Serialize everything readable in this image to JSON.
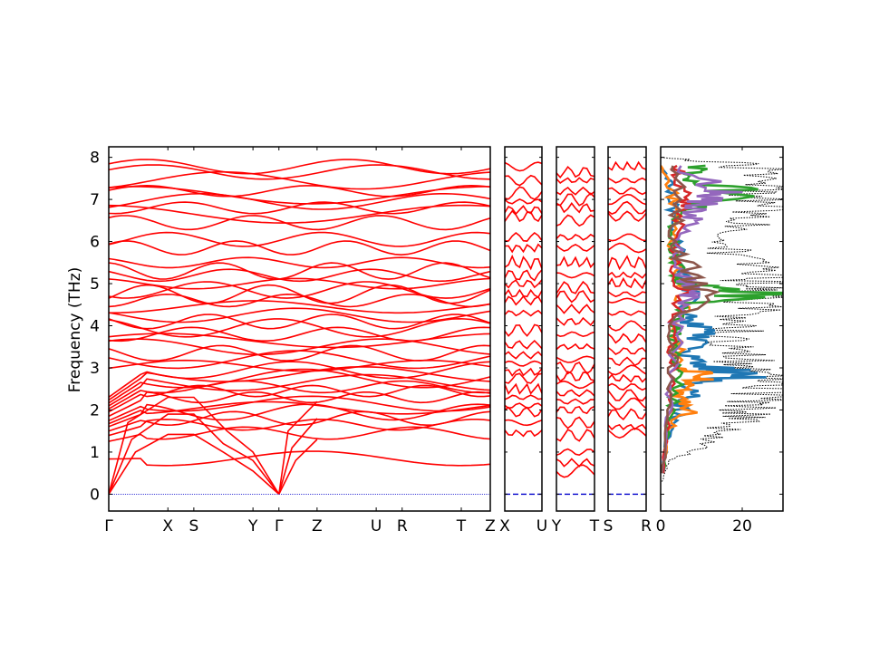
{
  "chart_data": [
    {
      "type": "line",
      "panel": "band-structure-main",
      "ylabel": "Frequency (THz)",
      "ylim": [
        -0.4,
        8.25
      ],
      "yticks": [
        0,
        1,
        2,
        3,
        4,
        5,
        6,
        7,
        8
      ],
      "ytick_labels": [
        "0",
        "1",
        "2",
        "3",
        "4",
        "5",
        "6",
        "7",
        "8"
      ],
      "xticks": [
        {
          "label": "Γ",
          "x": 0.0
        },
        {
          "label": "X",
          "x": 0.155
        },
        {
          "label": "S",
          "x": 0.223
        },
        {
          "label": "Y",
          "x": 0.378
        },
        {
          "label": "Γ",
          "x": 0.446
        },
        {
          "label": "Z",
          "x": 0.546
        },
        {
          "label": "U",
          "x": 0.701
        },
        {
          "label": "R",
          "x": 0.769
        },
        {
          "label": "T",
          "x": 0.924
        },
        {
          "label": "Z",
          "x": 1.0
        }
      ],
      "series_color": "#ff0000",
      "zero_line_color": "#0000cc",
      "acoustic_branches": [
        {
          "x": [
            0,
            0.07,
            0.155,
            0.223,
            0.3,
            0.378,
            0.446
          ],
          "y": [
            0,
            1.0,
            1.42,
            1.42,
            1.0,
            0.55,
            0
          ]
        },
        {
          "x": [
            0,
            0.06,
            0.155,
            0.223,
            0.3,
            0.378,
            0.446
          ],
          "y": [
            0,
            1.3,
            1.9,
            1.9,
            1.2,
            0.8,
            0
          ]
        },
        {
          "x": [
            0,
            0.05,
            0.155,
            0.223,
            0.31,
            0.378,
            0.446
          ],
          "y": [
            0,
            1.7,
            2.3,
            2.3,
            1.5,
            1.0,
            0
          ]
        },
        {
          "x": [
            0.446,
            0.49,
            0.546
          ],
          "y": [
            0,
            0.8,
            1.3
          ]
        },
        {
          "x": [
            0.446,
            0.48,
            0.546
          ],
          "y": [
            0,
            1.1,
            1.8
          ]
        },
        {
          "x": [
            0.446,
            0.47,
            0.546
          ],
          "y": [
            0,
            1.5,
            2.2
          ]
        }
      ],
      "optical_levels": [
        0.85,
        1.45,
        1.65,
        1.8,
        1.95,
        2.05,
        2.15,
        2.3,
        2.45,
        2.55,
        2.65,
        2.75,
        2.85,
        2.95,
        3.05,
        3.2,
        3.35,
        3.5,
        3.65,
        3.8,
        3.95,
        4.1,
        4.25,
        4.45,
        4.6,
        4.75,
        4.85,
        5.0,
        5.2,
        5.3,
        5.5,
        5.85,
        6.05,
        6.45,
        6.65,
        6.8,
        6.95,
        7.1,
        7.2,
        7.45,
        7.65,
        7.78
      ]
    },
    {
      "type": "line",
      "panel": "band-structure-XU",
      "xticks": [
        {
          "label": "X",
          "x": 0
        },
        {
          "label": "U",
          "x": 1
        }
      ],
      "levels": [
        1.45,
        1.7,
        1.95,
        2.1,
        2.3,
        2.5,
        2.75,
        2.9,
        3.1,
        3.3,
        3.55,
        3.9,
        4.3,
        4.6,
        4.75,
        5.0,
        5.2,
        5.5,
        5.85,
        6.1,
        6.6,
        6.75,
        6.95,
        7.15,
        7.45,
        7.78
      ]
    },
    {
      "type": "line",
      "panel": "band-structure-YT",
      "xticks": [
        {
          "label": "Y",
          "x": 0
        },
        {
          "label": "T",
          "x": 1
        }
      ],
      "levels": [
        0.55,
        0.75,
        1.0,
        1.4,
        1.7,
        2.0,
        2.2,
        2.4,
        2.6,
        2.8,
        3.0,
        3.2,
        3.5,
        3.8,
        4.1,
        4.4,
        4.7,
        4.9,
        5.2,
        5.5,
        5.85,
        6.1,
        6.5,
        6.8,
        7.0,
        7.2,
        7.45,
        7.65
      ]
    },
    {
      "type": "line",
      "panel": "band-structure-SR",
      "xticks": [
        {
          "label": "S",
          "x": 0
        },
        {
          "label": "R",
          "x": 1
        }
      ],
      "levels": [
        1.45,
        1.6,
        1.9,
        2.15,
        2.35,
        2.55,
        2.75,
        2.95,
        3.15,
        3.4,
        3.7,
        4.0,
        4.3,
        4.6,
        4.75,
        5.0,
        5.2,
        5.5,
        5.85,
        6.1,
        6.6,
        6.8,
        7.0,
        7.2,
        7.45,
        7.78
      ]
    },
    {
      "type": "line",
      "panel": "partial-dos",
      "xlim": [
        0,
        30
      ],
      "xticks": [
        0,
        20
      ],
      "xtick_labels": [
        "0",
        "20"
      ],
      "ylim": [
        -0.4,
        8.25
      ],
      "total": {
        "style": "dotted",
        "color": "#000000",
        "y": [
          0.3,
          0.8,
          1.2,
          1.5,
          1.8,
          2.0,
          2.2,
          2.5,
          2.7,
          3.0,
          3.2,
          3.5,
          3.8,
          4.0,
          4.3,
          4.6,
          4.8,
          5.0,
          5.2,
          5.5,
          5.8,
          6.1,
          6.4,
          6.7,
          7.0,
          7.2,
          7.5,
          7.8,
          8.0
        ],
        "x": [
          0.5,
          3,
          12,
          16,
          24,
          26,
          29,
          28,
          29,
          27,
          22,
          20,
          18,
          24,
          23,
          28,
          29,
          25,
          29,
          24,
          18,
          20,
          26,
          29,
          28,
          28,
          24,
          26,
          0
        ]
      },
      "series": [
        {
          "color": "#1f77b4",
          "y": [
            0.5,
            1.5,
            2.0,
            2.3,
            2.6,
            2.8,
            3.0,
            3.3,
            3.7,
            4.0,
            4.3,
            4.8,
            5.2,
            6.0,
            6.5,
            7.0,
            7.5,
            7.8
          ],
          "x": [
            0.5,
            2,
            5,
            7,
            8,
            20,
            14,
            6,
            10,
            9,
            6,
            8,
            5,
            4,
            3,
            3,
            2,
            0
          ]
        },
        {
          "color": "#ff7f0e",
          "y": [
            0.5,
            1.5,
            2.0,
            2.3,
            2.6,
            2.8,
            3.0,
            3.5,
            4.0,
            4.7,
            5.2,
            6.0,
            6.8,
            7.2,
            7.8
          ],
          "x": [
            0.5,
            2,
            7,
            4,
            6,
            12,
            5,
            4,
            4,
            6,
            4,
            3,
            3,
            3,
            0
          ]
        },
        {
          "color": "#2ca02c",
          "y": [
            0.5,
            2.0,
            2.8,
            3.5,
            4.0,
            4.5,
            4.78,
            5.0,
            5.5,
            6.0,
            6.7,
            7.2,
            7.5,
            7.8
          ],
          "x": [
            0.5,
            3,
            4,
            3,
            4,
            5,
            26,
            5,
            4,
            3,
            4,
            20,
            5,
            11
          ]
        },
        {
          "color": "#d62728",
          "y": [
            0.5,
            2.0,
            3.0,
            4.0,
            4.7,
            5.2,
            6.0,
            6.8,
            7.2,
            7.8
          ],
          "x": [
            0.5,
            2,
            3,
            3,
            6,
            4,
            3,
            5,
            6,
            4
          ]
        },
        {
          "color": "#9467bd",
          "y": [
            0.5,
            2.0,
            3.0,
            3.8,
            4.5,
            4.8,
            5.2,
            6.0,
            6.5,
            6.8,
            7.0,
            7.2,
            7.8
          ],
          "x": [
            0.5,
            2,
            3,
            4,
            5,
            8,
            6,
            3,
            7,
            9,
            12,
            15,
            5
          ]
        },
        {
          "color": "#8c564b",
          "y": [
            0.5,
            2.0,
            3.0,
            4.0,
            4.8,
            5.2,
            6.0,
            7.0,
            7.8
          ],
          "x": [
            0.5,
            2,
            3,
            3,
            10,
            8,
            3,
            5,
            3
          ]
        }
      ]
    }
  ]
}
